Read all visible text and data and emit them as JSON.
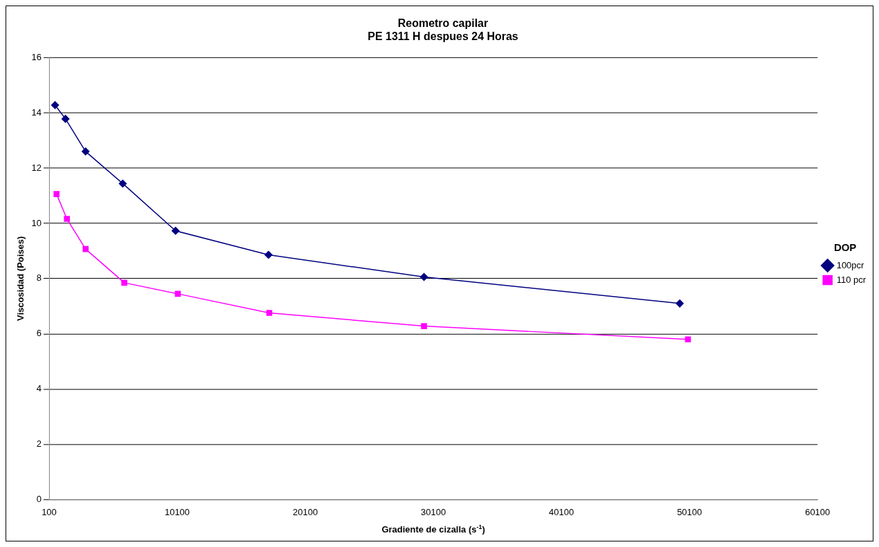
{
  "chart_data": {
    "type": "line",
    "title": "Reometro capilar",
    "subtitle": "PE 1311 H despues 24 Horas",
    "xlabel": "Gradiente de cizalla (s$^{-1}$)",
    "ylabel": "Viscosidad (Poises)",
    "legend_title": "DOP",
    "legend": "right",
    "grid": "y",
    "line_style": "solid",
    "xlim": [
      100,
      60100
    ],
    "xticks": [
      100,
      10100,
      20100,
      30100,
      40100,
      50100,
      60100
    ],
    "ylim": [
      0,
      16
    ],
    "yticks": [
      0,
      2,
      4,
      6,
      8,
      10,
      12,
      14,
      16
    ],
    "series": [
      {
        "name": "100pcr",
        "color": "#000080",
        "marker": "diamond",
        "x": [
          565,
          1380,
          2950,
          5850,
          9970,
          17230,
          29370,
          49340
        ],
        "values": [
          14.28,
          13.78,
          12.6,
          11.44,
          9.73,
          8.86,
          8.06,
          7.1
        ]
      },
      {
        "name": "110 pcr",
        "color": "#ff00ff",
        "marker": "square",
        "x": [
          680,
          1490,
          2950,
          5970,
          10150,
          17290,
          29370,
          49980
        ],
        "values": [
          11.06,
          10.16,
          9.07,
          7.85,
          7.45,
          6.76,
          6.28,
          5.8
        ]
      }
    ]
  }
}
